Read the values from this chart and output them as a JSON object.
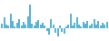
{
  "values": [
    0.6,
    1.4,
    0.5,
    0.4,
    1.8,
    1.0,
    0.3,
    0.7,
    1.2,
    0.4,
    0.8,
    0.5,
    1.5,
    3.0,
    0.6,
    0.4,
    0.8,
    1.1,
    0.5,
    0.7,
    0.4,
    -0.3,
    -0.8,
    1.2,
    0.5,
    -0.5,
    -1.0,
    0.4,
    -0.4,
    -0.7,
    0.3,
    0.5,
    1.8,
    0.4,
    0.7,
    1.4,
    0.5,
    0.3,
    0.8,
    0.6,
    1.0,
    0.4,
    0.6,
    1.2,
    0.5,
    0.9,
    0.4,
    0.7,
    0.5,
    0.8
  ],
  "bar_color": "#5ab4d6",
  "background_color": "#ffffff",
  "ylim_min": -1.5,
  "ylim_max": 3.5
}
